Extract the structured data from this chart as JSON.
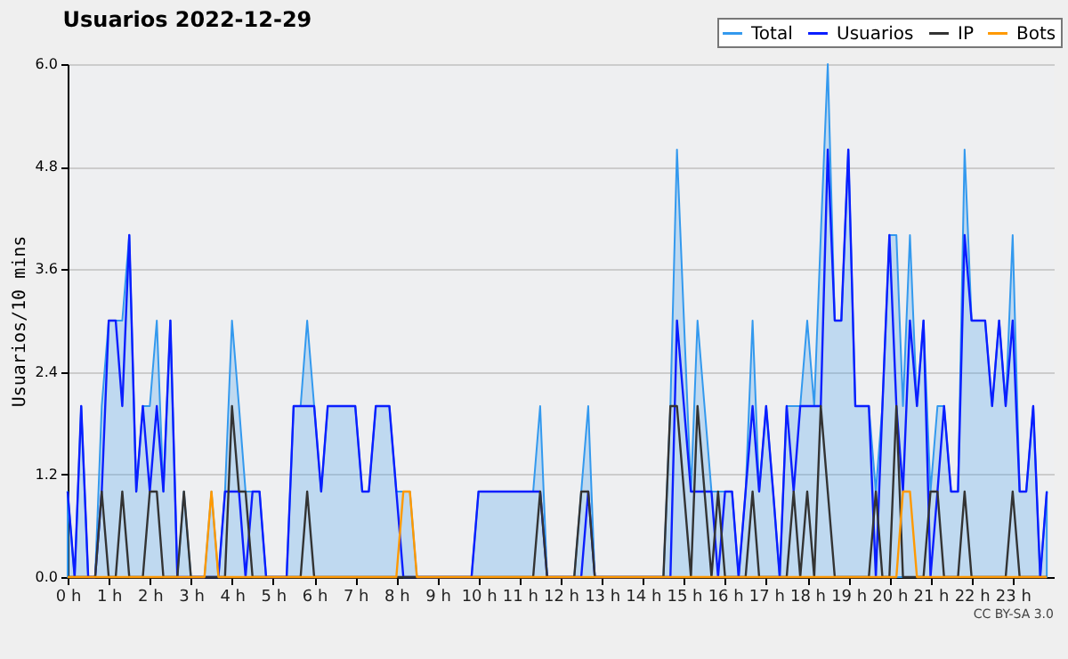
{
  "chart_data": {
    "type": "line",
    "title": "Usuarios  2022-12-29",
    "ylabel": "Usuarios/10 mins",
    "x": [
      0,
      0.17,
      0.33,
      0.5,
      0.67,
      0.83,
      1,
      1.17,
      1.33,
      1.5,
      1.67,
      1.83,
      2,
      2.17,
      2.33,
      2.5,
      2.67,
      2.83,
      3,
      3.17,
      3.33,
      3.5,
      3.67,
      3.83,
      4,
      4.17,
      4.33,
      4.5,
      4.67,
      4.83,
      5,
      5.17,
      5.33,
      5.5,
      5.67,
      5.83,
      6,
      6.17,
      6.33,
      6.5,
      6.67,
      6.83,
      7,
      7.17,
      7.33,
      7.5,
      7.67,
      7.83,
      8,
      8.17,
      8.33,
      8.5,
      8.67,
      8.83,
      9,
      9.17,
      9.33,
      9.5,
      9.67,
      9.83,
      10,
      10.17,
      10.33,
      10.5,
      10.67,
      10.83,
      11,
      11.17,
      11.33,
      11.5,
      11.67,
      11.83,
      12,
      12.17,
      12.33,
      12.5,
      12.67,
      12.83,
      13,
      13.17,
      13.33,
      13.5,
      13.67,
      13.83,
      14,
      14.17,
      14.33,
      14.5,
      14.67,
      14.83,
      15,
      15.17,
      15.33,
      15.5,
      15.67,
      15.83,
      16,
      16.17,
      16.33,
      16.5,
      16.67,
      16.83,
      17,
      17.17,
      17.33,
      17.5,
      17.67,
      17.83,
      18,
      18.17,
      18.33,
      18.5,
      18.67,
      18.83,
      19,
      19.17,
      19.33,
      19.5,
      19.67,
      19.83,
      20,
      20.17,
      20.33,
      20.5,
      20.67,
      20.83,
      21,
      21.17,
      21.33,
      21.5,
      21.67,
      21.83,
      22,
      22.17,
      22.33,
      22.5,
      22.67,
      22.83,
      23,
      23.17,
      23.33,
      23.5,
      23.67,
      23.83
    ],
    "series": [
      {
        "name": "Total",
        "type": "area",
        "color": "#3399ee",
        "values": [
          1,
          0,
          2,
          0,
          0,
          2,
          3,
          3,
          3,
          4,
          1,
          2,
          2,
          3,
          1,
          3,
          0,
          1,
          0,
          0,
          0,
          1,
          0,
          1,
          3,
          2,
          1,
          1,
          1,
          0,
          0,
          0,
          0,
          2,
          2,
          3,
          2,
          1,
          2,
          2,
          2,
          2,
          2,
          1,
          1,
          2,
          2,
          2,
          1,
          1,
          1,
          0,
          0,
          0,
          0,
          0,
          0,
          0,
          0,
          0,
          1,
          1,
          1,
          1,
          1,
          1,
          1,
          1,
          1,
          2,
          0,
          0,
          0,
          0,
          0,
          1,
          2,
          0,
          0,
          0,
          0,
          0,
          0,
          0,
          0,
          0,
          0,
          0,
          2,
          5,
          3,
          1,
          3,
          2,
          1,
          1,
          1,
          1,
          0,
          1,
          3,
          1,
          2,
          1,
          0,
          2,
          2,
          2,
          3,
          2,
          4,
          6,
          3,
          3,
          5,
          2,
          2,
          2,
          1,
          2,
          4,
          4,
          2,
          4,
          2,
          3,
          1,
          2,
          2,
          1,
          1,
          5,
          3,
          3,
          3,
          2,
          3,
          2,
          4,
          1,
          1,
          2,
          0,
          1
        ]
      },
      {
        "name": "Usuarios",
        "color": "#0a1eff",
        "values": [
          1,
          0,
          2,
          0,
          0,
          1,
          3,
          3,
          2,
          4,
          1,
          2,
          1,
          2,
          1,
          3,
          0,
          0,
          0,
          0,
          0,
          0,
          0,
          1,
          1,
          1,
          0,
          1,
          1,
          0,
          0,
          0,
          0,
          2,
          2,
          2,
          2,
          1,
          2,
          2,
          2,
          2,
          2,
          1,
          1,
          2,
          2,
          2,
          1,
          0,
          0,
          0,
          0,
          0,
          0,
          0,
          0,
          0,
          0,
          0,
          1,
          1,
          1,
          1,
          1,
          1,
          1,
          1,
          1,
          1,
          0,
          0,
          0,
          0,
          0,
          0,
          1,
          0,
          0,
          0,
          0,
          0,
          0,
          0,
          0,
          0,
          0,
          0,
          0,
          3,
          2,
          1,
          1,
          1,
          1,
          0,
          1,
          1,
          0,
          1,
          2,
          1,
          2,
          1,
          0,
          2,
          1,
          2,
          2,
          2,
          2,
          5,
          3,
          3,
          5,
          2,
          2,
          2,
          0,
          2,
          4,
          2,
          1,
          3,
          2,
          3,
          0,
          1,
          2,
          1,
          1,
          4,
          3,
          3,
          3,
          2,
          3,
          2,
          3,
          1,
          1,
          2,
          0,
          1
        ]
      },
      {
        "name": "IP",
        "color": "#333333",
        "values": [
          0,
          0,
          0,
          0,
          0,
          1,
          0,
          0,
          1,
          0,
          0,
          0,
          1,
          1,
          0,
          0,
          0,
          1,
          0,
          0,
          0,
          0,
          0,
          0,
          2,
          1,
          1,
          0,
          0,
          0,
          0,
          0,
          0,
          0,
          0,
          1,
          0,
          0,
          0,
          0,
          0,
          0,
          0,
          0,
          0,
          0,
          0,
          0,
          0,
          0,
          0,
          0,
          0,
          0,
          0,
          0,
          0,
          0,
          0,
          0,
          0,
          0,
          0,
          0,
          0,
          0,
          0,
          0,
          0,
          1,
          0,
          0,
          0,
          0,
          0,
          1,
          1,
          0,
          0,
          0,
          0,
          0,
          0,
          0,
          0,
          0,
          0,
          0,
          2,
          2,
          1,
          0,
          2,
          1,
          0,
          1,
          0,
          0,
          0,
          0,
          1,
          0,
          0,
          0,
          0,
          0,
          1,
          0,
          1,
          0,
          2,
          1,
          0,
          0,
          0,
          0,
          0,
          0,
          1,
          0,
          0,
          2,
          0,
          0,
          0,
          0,
          1,
          1,
          0,
          0,
          0,
          1,
          0,
          0,
          0,
          0,
          0,
          0,
          1,
          0,
          0,
          0,
          0,
          0
        ]
      },
      {
        "name": "Bots",
        "color": "#ff9900",
        "values": [
          0,
          0,
          0,
          0,
          0,
          0,
          0,
          0,
          0,
          0,
          0,
          0,
          0,
          0,
          0,
          0,
          0,
          0,
          0,
          0,
          0,
          1,
          0,
          0,
          0,
          0,
          0,
          0,
          0,
          0,
          0,
          0,
          0,
          0,
          0,
          0,
          0,
          0,
          0,
          0,
          0,
          0,
          0,
          0,
          0,
          0,
          0,
          0,
          0,
          1,
          1,
          0,
          0,
          0,
          0,
          0,
          0,
          0,
          0,
          0,
          0,
          0,
          0,
          0,
          0,
          0,
          0,
          0,
          0,
          0,
          0,
          0,
          0,
          0,
          0,
          0,
          0,
          0,
          0,
          0,
          0,
          0,
          0,
          0,
          0,
          0,
          0,
          0,
          0,
          0,
          0,
          0,
          0,
          0,
          0,
          0,
          0,
          0,
          0,
          0,
          0,
          0,
          0,
          0,
          0,
          0,
          0,
          0,
          0,
          0,
          0,
          0,
          0,
          0,
          0,
          0,
          0,
          0,
          0,
          0,
          0,
          0,
          1,
          1,
          0,
          0,
          0,
          0,
          0,
          0,
          0,
          0,
          0,
          0,
          0,
          0,
          0,
          0,
          0,
          0,
          0,
          0,
          0,
          0
        ]
      }
    ],
    "xlim": [
      0,
      24
    ],
    "xticks": [
      {
        "value": 0,
        "label": "0 h"
      },
      {
        "value": 1,
        "label": "1 h"
      },
      {
        "value": 2,
        "label": "2 h"
      },
      {
        "value": 3,
        "label": "3 h"
      },
      {
        "value": 4,
        "label": "4 h"
      },
      {
        "value": 5,
        "label": "5 h"
      },
      {
        "value": 6,
        "label": "6 h"
      },
      {
        "value": 7,
        "label": "7 h"
      },
      {
        "value": 8,
        "label": "8 h"
      },
      {
        "value": 9,
        "label": "9 h"
      },
      {
        "value": 10,
        "label": "10 h"
      },
      {
        "value": 11,
        "label": "11 h"
      },
      {
        "value": 12,
        "label": "12 h"
      },
      {
        "value": 13,
        "label": "13 h"
      },
      {
        "value": 14,
        "label": "14 h"
      },
      {
        "value": 15,
        "label": "15 h"
      },
      {
        "value": 16,
        "label": "16 h"
      },
      {
        "value": 17,
        "label": "17 h"
      },
      {
        "value": 18,
        "label": "18 h"
      },
      {
        "value": 19,
        "label": "19 h"
      },
      {
        "value": 20,
        "label": "20 h"
      },
      {
        "value": 21,
        "label": "21 h"
      },
      {
        "value": 22,
        "label": "22 h"
      },
      {
        "value": 23,
        "label": "23 h"
      }
    ],
    "ylim": [
      0,
      6
    ],
    "yticks": [
      {
        "value": 0,
        "label": "0.0"
      },
      {
        "value": 1.2,
        "label": "1.2"
      },
      {
        "value": 2.4,
        "label": "2.4"
      },
      {
        "value": 3.6,
        "label": "3.6"
      },
      {
        "value": 4.8,
        "label": "4.8"
      },
      {
        "value": 6,
        "label": "6.0"
      }
    ],
    "grid": "y",
    "legend": "top right",
    "marker": "none",
    "line_style": "solid",
    "annotations": [
      "CC BY-SA 3.0"
    ]
  }
}
